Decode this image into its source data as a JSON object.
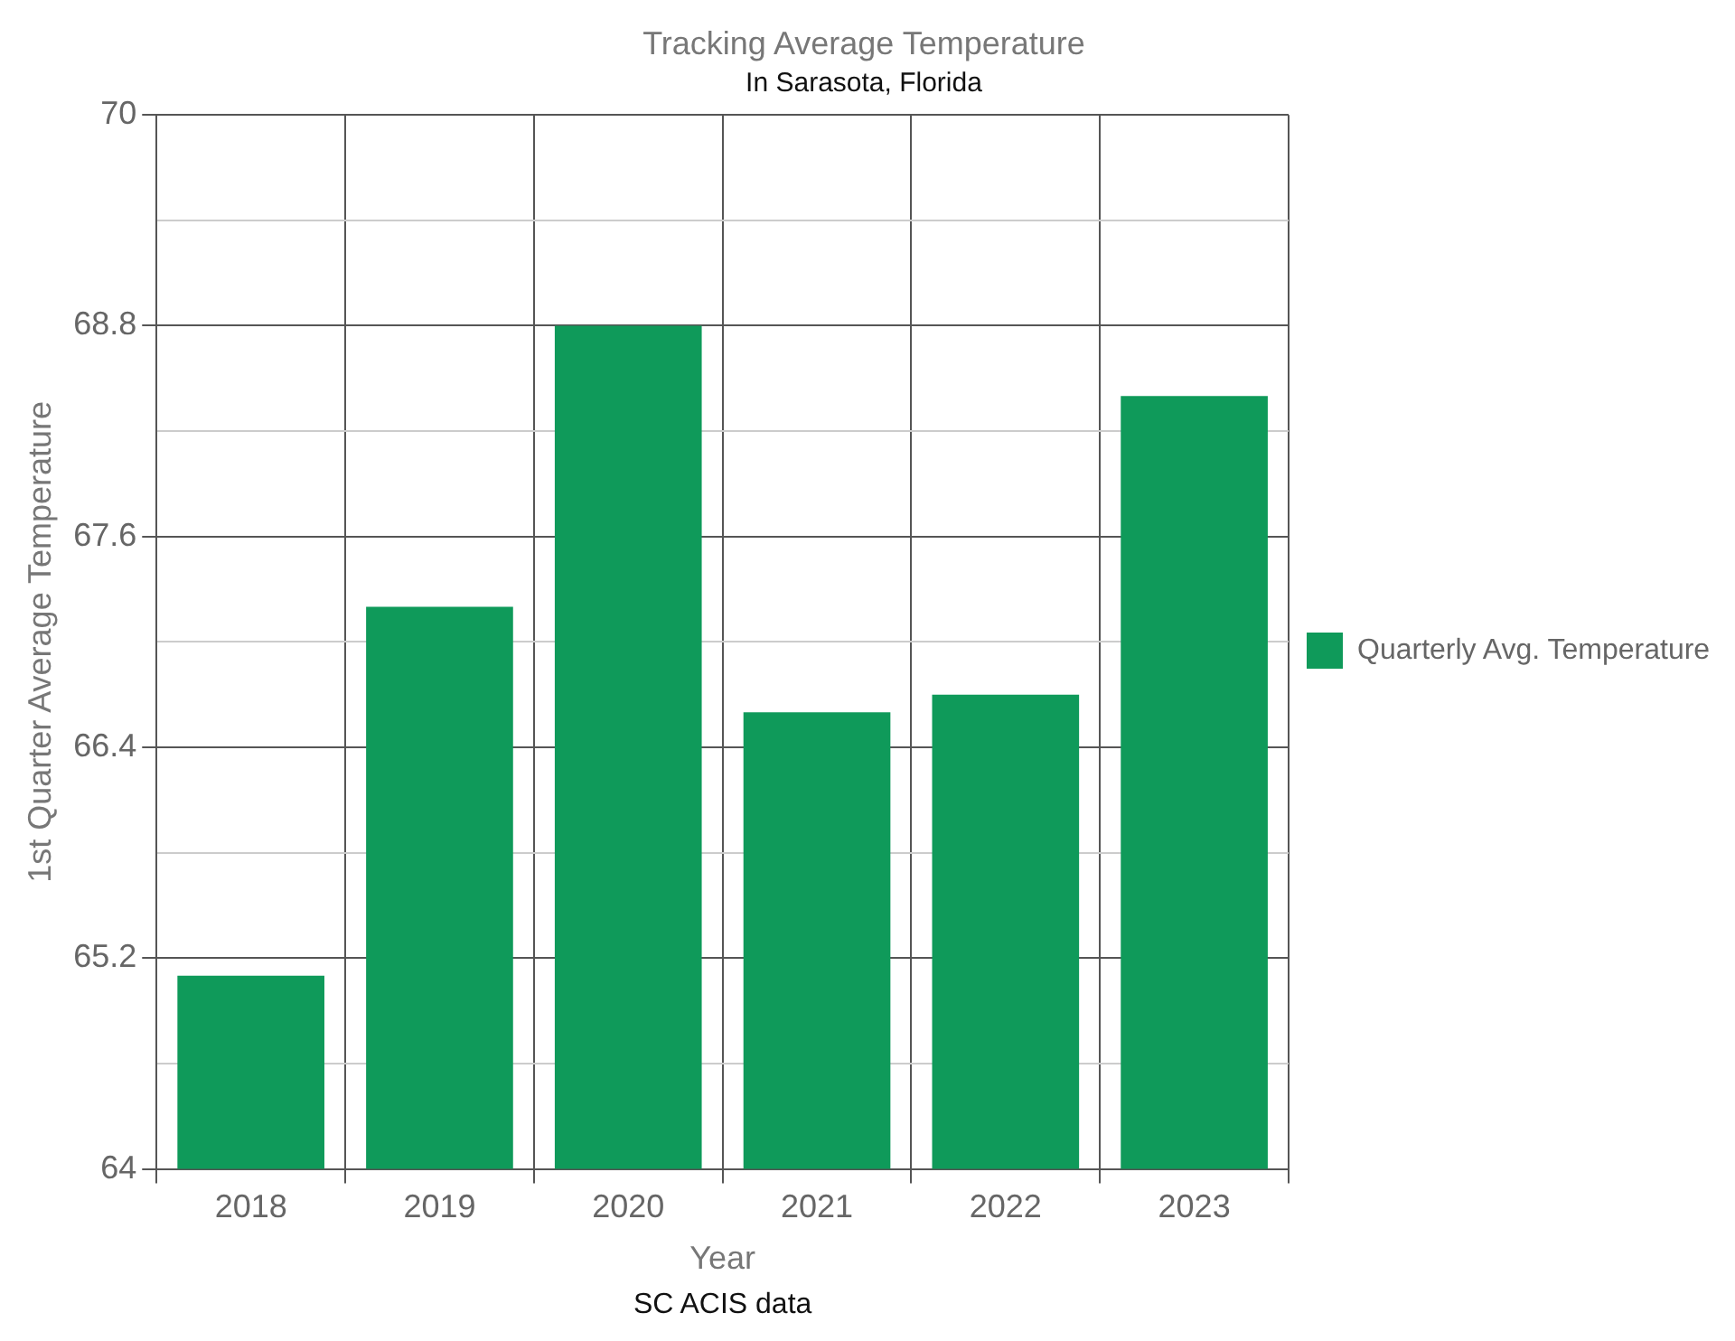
{
  "chart_data": {
    "type": "bar",
    "title": "Tracking Average Temperature",
    "subtitle": "In Sarasota, Florida",
    "xlabel": "Year",
    "ylabel": "1st Quarter Average Temperature",
    "categories": [
      "2018",
      "2019",
      "2020",
      "2021",
      "2022",
      "2023"
    ],
    "series": [
      {
        "name": "Quarterly Avg. Temperature",
        "color": "#0f9a5a",
        "values": [
          65.1,
          67.2,
          68.8,
          66.6,
          66.7,
          68.4
        ]
      }
    ],
    "ylim": [
      64,
      70
    ],
    "yticks": [
      64,
      {
        "value": 64.6,
        "label": null
      },
      65.2,
      {
        "value": 65.8,
        "label": null
      },
      66.4,
      {
        "value": 67,
        "label": null
      },
      67.6,
      {
        "value": 68.2,
        "label": null
      },
      68.8,
      {
        "value": 69.4,
        "label": null
      },
      70
    ],
    "grid": true,
    "legend": "right",
    "annotations": [
      "SC ACIS data"
    ]
  }
}
